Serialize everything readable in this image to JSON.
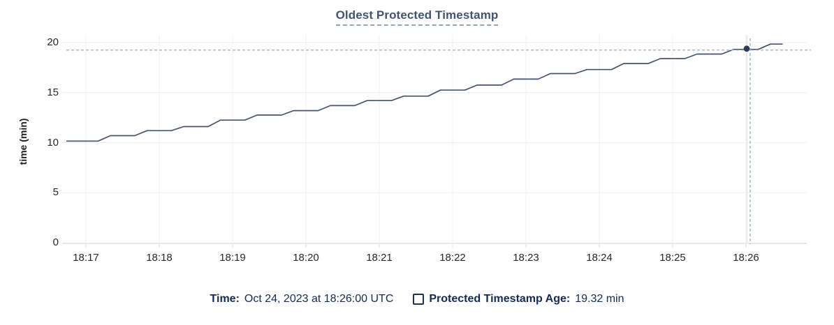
{
  "header": {
    "title": "Oldest Protected Timestamp"
  },
  "legend": {
    "time_key": "Time:",
    "time_value": "Oct 24, 2023 at 18:26:00 UTC",
    "series_key": "Protected Timestamp Age:",
    "series_value": "19.32 min"
  },
  "colors": {
    "line": "#47546c",
    "dot": "#2e3d58",
    "crosshair": "#a3b6c2",
    "grid_horizontal": "#ededed",
    "grid_vertical": "#f2f2f2",
    "axis": "#e7e7e7",
    "tick_mark": "#d8d8d8",
    "hover_band": "#e9ebee",
    "title_text": "#44546e",
    "legend_text": "#152a50",
    "tick_text": "#25272a"
  },
  "chart_data": {
    "type": "line",
    "title": "Oldest Protected Timestamp",
    "xlabel": "",
    "ylabel": "time (min)",
    "ylim": [
      0,
      20
    ],
    "yticks": [
      0,
      5,
      10,
      15,
      20
    ],
    "xticks": [
      "18:17",
      "18:18",
      "18:19",
      "18:20",
      "18:21",
      "18:22",
      "18:23",
      "18:24",
      "18:25",
      "18:26"
    ],
    "grid": true,
    "legend_position": "bottom",
    "series": [
      {
        "name": "Protected Timestamp Age",
        "unit": "min",
        "points": [
          [
            "18:16:44",
            10.15
          ],
          [
            "18:17:10",
            10.15
          ],
          [
            "18:17:20",
            10.7
          ],
          [
            "18:17:40",
            10.7
          ],
          [
            "18:17:50",
            11.2
          ],
          [
            "18:18:10",
            11.2
          ],
          [
            "18:18:20",
            11.6
          ],
          [
            "18:18:40",
            11.6
          ],
          [
            "18:18:50",
            12.25
          ],
          [
            "18:19:10",
            12.25
          ],
          [
            "18:19:20",
            12.75
          ],
          [
            "18:19:40",
            12.75
          ],
          [
            "18:19:50",
            13.2
          ],
          [
            "18:20:10",
            13.2
          ],
          [
            "18:20:20",
            13.7
          ],
          [
            "18:20:40",
            13.7
          ],
          [
            "18:20:50",
            14.2
          ],
          [
            "18:21:10",
            14.2
          ],
          [
            "18:21:20",
            14.65
          ],
          [
            "18:21:40",
            14.65
          ],
          [
            "18:21:50",
            15.25
          ],
          [
            "18:22:10",
            15.25
          ],
          [
            "18:22:20",
            15.75
          ],
          [
            "18:22:40",
            15.75
          ],
          [
            "18:22:50",
            16.35
          ],
          [
            "18:23:10",
            16.35
          ],
          [
            "18:23:20",
            16.9
          ],
          [
            "18:23:40",
            16.9
          ],
          [
            "18:23:50",
            17.3
          ],
          [
            "18:24:10",
            17.3
          ],
          [
            "18:24:20",
            17.9
          ],
          [
            "18:24:40",
            17.9
          ],
          [
            "18:24:50",
            18.4
          ],
          [
            "18:25:10",
            18.4
          ],
          [
            "18:25:20",
            18.85
          ],
          [
            "18:25:40",
            18.85
          ],
          [
            "18:25:50",
            19.32
          ],
          [
            "18:26:10",
            19.32
          ],
          [
            "18:26:20",
            19.85
          ],
          [
            "18:26:30",
            19.85
          ]
        ]
      }
    ],
    "hover_point": {
      "time": "18:26:00",
      "value": 19.32,
      "value_label": "19.32 min"
    }
  }
}
